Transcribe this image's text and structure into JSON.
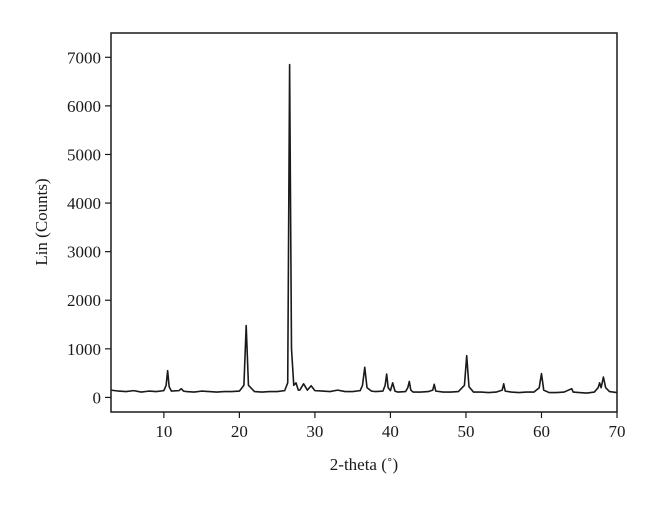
{
  "chart_data": {
    "type": "line",
    "xlabel": "2-theta (˚)",
    "ylabel": "Lin (Counts)",
    "x": [
      3,
      4,
      5,
      6,
      7,
      8,
      9,
      10,
      10.3,
      10.5,
      10.7,
      11,
      12,
      12.3,
      12.6,
      13,
      14,
      15,
      16,
      17,
      18,
      19,
      20,
      20.6,
      20.9,
      21.2,
      22,
      23,
      24,
      25,
      26,
      26.4,
      26.65,
      26.9,
      27.2,
      27.5,
      27.8,
      28,
      28.5,
      29,
      29.5,
      30,
      31,
      32,
      33,
      34,
      35,
      36,
      36.3,
      36.6,
      36.9,
      37.5,
      38,
      39,
      39.3,
      39.5,
      39.7,
      40,
      40.3,
      40.6,
      41,
      42,
      42.3,
      42.5,
      42.7,
      43,
      44,
      45,
      45.6,
      45.8,
      46,
      47,
      48,
      49,
      49.8,
      50.1,
      50.4,
      51,
      52,
      53,
      54,
      54.8,
      55,
      55.2,
      56,
      57,
      58,
      59,
      59.7,
      60,
      60.3,
      61,
      62,
      63,
      64,
      64.2,
      65,
      66,
      67,
      67.5,
      67.7,
      67.9,
      68.2,
      68.5,
      69,
      70
    ],
    "values": [
      150,
      130,
      120,
      140,
      110,
      130,
      120,
      140,
      250,
      550,
      220,
      130,
      140,
      180,
      130,
      120,
      110,
      130,
      120,
      110,
      120,
      120,
      130,
      250,
      1480,
      250,
      120,
      110,
      120,
      120,
      140,
      300,
      6850,
      1000,
      250,
      300,
      150,
      150,
      280,
      150,
      240,
      140,
      130,
      120,
      150,
      120,
      120,
      140,
      250,
      620,
      200,
      130,
      120,
      130,
      250,
      480,
      200,
      140,
      300,
      130,
      110,
      120,
      200,
      330,
      150,
      110,
      110,
      120,
      150,
      270,
      130,
      110,
      110,
      120,
      250,
      860,
      220,
      110,
      110,
      100,
      110,
      150,
      280,
      130,
      110,
      100,
      110,
      110,
      200,
      490,
      150,
      100,
      100,
      110,
      180,
      110,
      100,
      90,
      110,
      200,
      300,
      200,
      420,
      200,
      120,
      100
    ],
    "color": "#1a1a1a",
    "xlim": [
      3,
      70
    ],
    "xticks": [
      10,
      20,
      30,
      40,
      50,
      60,
      70
    ],
    "ylim": [
      -300,
      7500
    ],
    "yticks": [
      0,
      1000,
      2000,
      3000,
      4000,
      5000,
      6000,
      7000
    ]
  }
}
